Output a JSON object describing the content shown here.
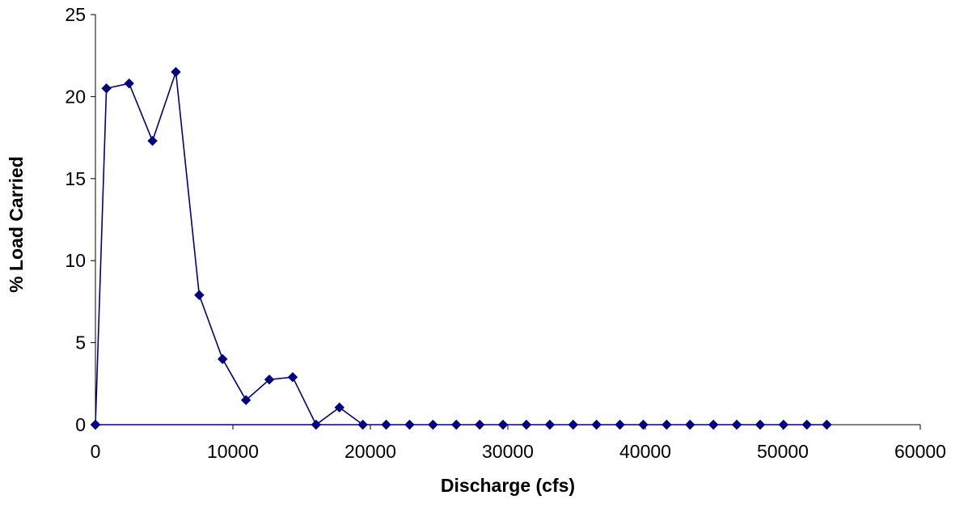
{
  "chart_data": {
    "type": "line",
    "title": "",
    "xlabel": "Discharge (cfs)",
    "ylabel": "% Load Carried",
    "xlim": [
      0,
      60000
    ],
    "ylim": [
      0,
      25
    ],
    "xticks": [
      0,
      10000,
      20000,
      30000,
      40000,
      50000,
      60000
    ],
    "yticks": [
      0,
      5,
      10,
      15,
      20,
      25
    ],
    "grid": false,
    "legend": "none",
    "series": [
      {
        "color": "#000080",
        "marker": "diamond",
        "x": [
          0,
          800,
          2450,
          4150,
          5850,
          7550,
          9250,
          10950,
          12650,
          14350,
          16050,
          17750,
          19450,
          21150,
          22850,
          24550,
          26250,
          27950,
          29650,
          31350,
          33050,
          34750,
          36450,
          38150,
          39850,
          41550,
          43250,
          44950,
          46650,
          48350,
          50050,
          51750,
          53200,
          0
        ],
        "y": [
          0,
          20.5,
          20.8,
          17.3,
          21.5,
          7.9,
          4.0,
          1.5,
          2.75,
          2.9,
          0,
          1.05,
          0,
          0,
          0,
          0,
          0,
          0,
          0,
          0,
          0,
          0,
          0,
          0,
          0,
          0,
          0,
          0,
          0,
          0,
          0,
          0,
          0,
          0
        ]
      }
    ]
  }
}
